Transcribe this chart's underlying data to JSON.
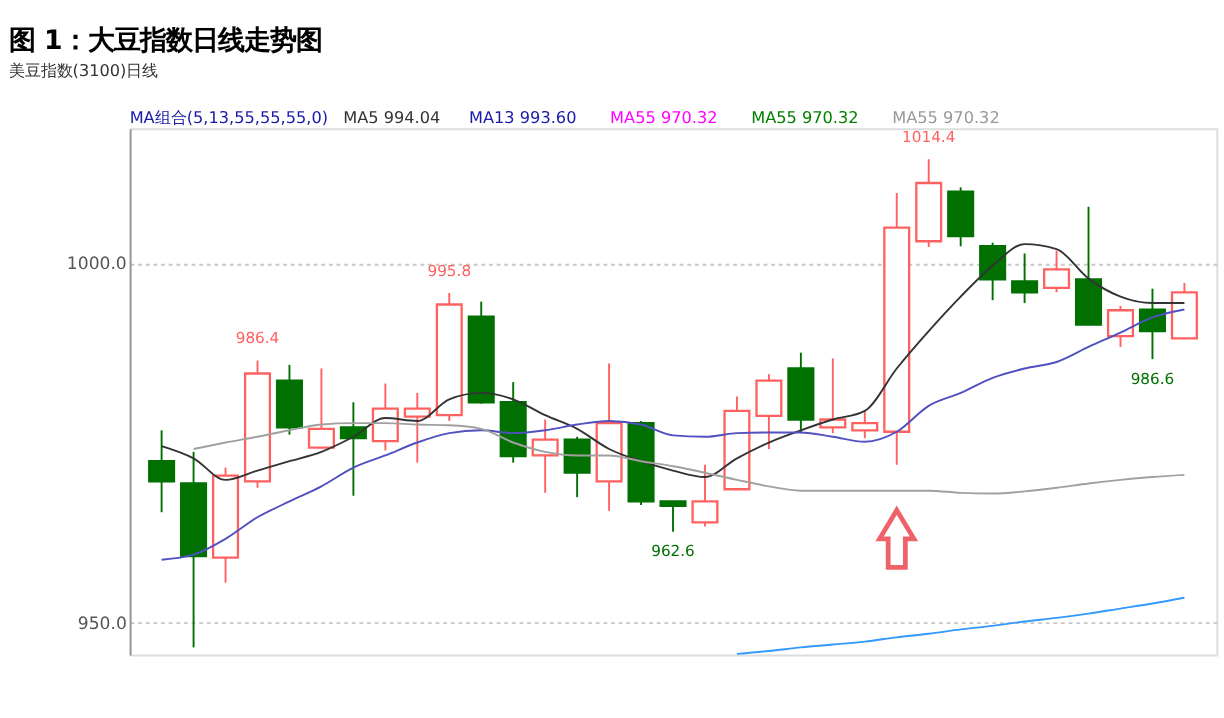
{
  "chart_data": {
    "type": "candlestick",
    "title": "图 1：大豆指数日线走势图",
    "subtitle": "美豆指数(3100)日线",
    "annotations": [
      "MA组合(5,13,55,55,55,0)",
      "MA5 994.04",
      "MA13 993.60",
      "MA55 970.32",
      "MA55 970.32",
      "MA55 970.32",
      {
        "text": "986.4",
        "y": 986.4
      },
      {
        "text": "995.8",
        "y": 995.8
      },
      {
        "text": "962.6",
        "y": 962.6
      },
      {
        "text": "1014.4",
        "y": 1014.4
      },
      {
        "text": "986.6",
        "y": 986.6
      }
    ],
    "categories": [
      null,
      null,
      null,
      null,
      null,
      null,
      null,
      null,
      null,
      null,
      null,
      null,
      null,
      null,
      null,
      null,
      null,
      null,
      null,
      null,
      null,
      null,
      null,
      null,
      null,
      null,
      null,
      null,
      null,
      null,
      null,
      null,
      null
    ],
    "ohlc": [
      [
        972.4,
        976.7,
        965.3,
        969.6
      ],
      [
        969.3,
        973.7,
        946.5,
        959.2
      ],
      [
        959.0,
        971.5,
        955.5,
        970.4
      ],
      [
        969.6,
        986.4,
        968.7,
        984.6
      ],
      [
        983.6,
        985.8,
        976.1,
        977.1
      ],
      [
        974.3,
        985.3,
        974.3,
        976.9
      ],
      [
        977.1,
        980.6,
        967.6,
        975.6
      ],
      [
        975.2,
        983.2,
        973.9,
        979.7
      ],
      [
        978.6,
        981.9,
        972.2,
        979.7
      ],
      [
        978.8,
        995.8,
        978.0,
        994.2
      ],
      [
        992.5,
        994.6,
        980.4,
        980.6
      ],
      [
        980.6,
        983.4,
        972.2,
        973.1
      ],
      [
        973.2,
        978.2,
        968.0,
        975.4
      ],
      [
        975.4,
        975.8,
        967.4,
        970.8
      ],
      [
        969.6,
        986.0,
        965.5,
        977.7
      ],
      [
        977.7,
        978.0,
        966.3,
        966.8
      ],
      [
        966.8,
        966.8,
        962.6,
        966.2
      ],
      [
        963.9,
        971.9,
        963.3,
        966.8
      ],
      [
        968.5,
        981.4,
        968.5,
        979.4
      ],
      [
        978.7,
        984.5,
        974.1,
        983.6
      ],
      [
        985.3,
        987.5,
        976.3,
        978.2
      ],
      [
        977.1,
        986.7,
        976.3,
        978.2
      ],
      [
        976.7,
        979.3,
        975.6,
        977.7
      ],
      [
        976.5,
        1009.7,
        971.9,
        1004.9
      ],
      [
        1003.0,
        1014.4,
        1002.2,
        1011.1
      ],
      [
        1009.9,
        1010.5,
        1002.3,
        1003.7
      ],
      [
        1002.3,
        1002.8,
        994.8,
        997.7
      ],
      [
        997.4,
        1001.3,
        994.4,
        995.9
      ],
      [
        996.5,
        1001.7,
        995.9,
        999.1
      ],
      [
        997.7,
        1007.8,
        991.4,
        991.4
      ],
      [
        989.8,
        994.0,
        988.3,
        993.4
      ],
      [
        993.5,
        996.4,
        986.6,
        990.5
      ],
      [
        989.5,
        997.2,
        989.5,
        995.9
      ]
    ],
    "colors": [
      "#007000",
      "#007000",
      "#ff6060",
      "#ff6060",
      "#007000",
      "#ff6060",
      "#007000",
      "#ff6060",
      "#ff6060",
      "#ff6060",
      "#007000",
      "#007000",
      "#ff6060",
      "#007000",
      "#ff6060",
      "#007000",
      "#007000",
      "#ff6060",
      "#ff6060",
      "#ff6060",
      "#007000",
      "#ff6060",
      "#ff6060",
      "#ff6060",
      "#ff6060",
      "#007000",
      "#007000",
      "#007000",
      "#ff6060",
      "#007000",
      "#ff6060",
      "#007000",
      "#ff6060"
    ],
    "series": [
      {
        "type": "line",
        "color": "#333333",
        "values": [
          974.5,
          972.8,
          969.8,
          971.1,
          972.4,
          973.7,
          975.8,
          978.4,
          978.0,
          981.0,
          981.9,
          981.0,
          978.8,
          976.9,
          974.1,
          972.4,
          971.1,
          970.2,
          972.8,
          975.0,
          976.7,
          978.2,
          979.4,
          985.3,
          990.5,
          995.3,
          999.6,
          1002.6,
          1001.9,
          997.8,
          995.3,
          994.4,
          994.4
        ]
      },
      {
        "type": "line",
        "color": "#5050c0",
        "values": [
          958.7,
          959.4,
          961.6,
          964.6,
          966.8,
          968.9,
          971.5,
          973.2,
          975.0,
          976.3,
          976.7,
          976.3,
          976.7,
          977.5,
          978.0,
          977.5,
          976.0,
          975.8,
          976.3,
          976.4,
          976.4,
          975.8,
          975.1,
          976.5,
          980.1,
          981.9,
          984.0,
          985.3,
          986.2,
          988.3,
          990.3,
          992.4,
          993.5
        ]
      },
      {
        "type": "line",
        "color": "#a0a0a0",
        "values": [
          null,
          974.1,
          975.0,
          975.8,
          976.7,
          977.5,
          977.7,
          977.7,
          977.5,
          977.4,
          976.9,
          975.0,
          973.7,
          973.2,
          973.2,
          972.4,
          971.7,
          970.8,
          969.8,
          968.9,
          968.3,
          968.3,
          968.3,
          968.3,
          968.3,
          968.0,
          967.9,
          968.2,
          968.7,
          969.3,
          969.8,
          970.2,
          970.5
        ]
      },
      {
        "type": "line",
        "color": "#3399ff",
        "values": [
          null,
          null,
          null,
          null,
          null,
          null,
          null,
          null,
          null,
          null,
          null,
          null,
          null,
          null,
          null,
          null,
          null,
          null,
          945.6,
          946.0,
          946.5,
          946.9,
          947.3,
          947.9,
          948.4,
          949.0,
          949.5,
          950.1,
          950.6,
          951.2,
          951.9,
          952.6,
          953.4
        ]
      }
    ],
    "ylim": [
      945.5,
      1018.7
    ],
    "yticks": [
      {
        "value": 950,
        "label": "950.0"
      },
      {
        "value": 1000,
        "label": "1000.0"
      }
    ],
    "grid": "y",
    "tick_labels": "y"
  }
}
